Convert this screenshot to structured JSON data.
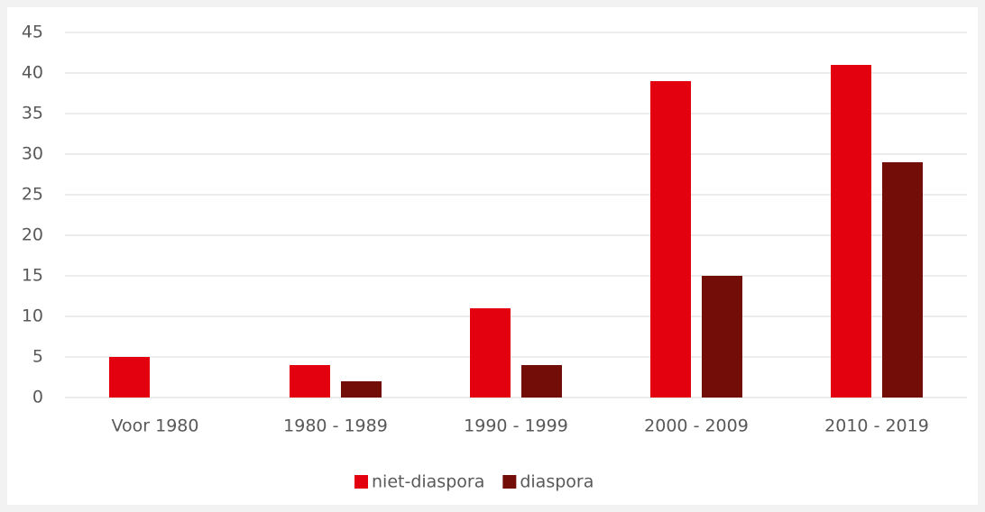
{
  "chart_data": {
    "type": "bar",
    "categories": [
      "Voor 1980",
      "1980 - 1989",
      "1990 - 1999",
      "2000 - 2009",
      "2010 - 2019"
    ],
    "series": [
      {
        "name": "niet-diaspora",
        "color": "#e3000f",
        "values": [
          5,
          4,
          11,
          39,
          41
        ]
      },
      {
        "name": "diaspora",
        "color": "#720e07",
        "values": [
          0,
          2,
          4,
          15,
          29
        ]
      }
    ],
    "ylim": [
      0,
      45
    ],
    "yticks": [
      0,
      5,
      10,
      15,
      20,
      25,
      30,
      35,
      40,
      45
    ],
    "grid": true,
    "legend": "bottom"
  }
}
